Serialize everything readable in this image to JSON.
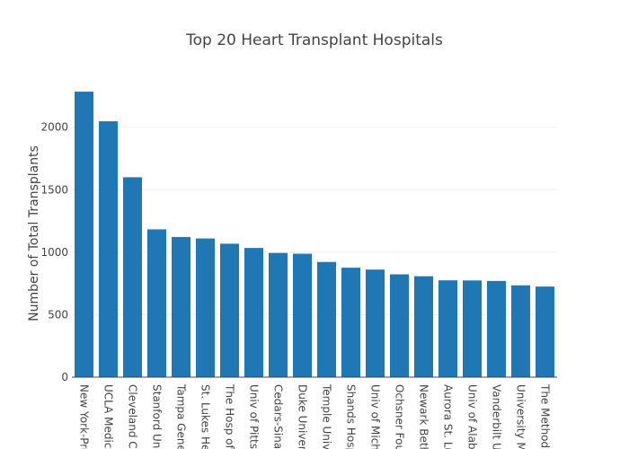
{
  "chart_data": {
    "type": "bar",
    "title": "Top 20 Heart Transplant Hospitals",
    "xlabel": "",
    "ylabel": "Number of Total Transplants",
    "ylim": [
      0,
      2300
    ],
    "yticks": [
      0,
      500,
      1000,
      1500,
      2000
    ],
    "grid": true,
    "bar_color": "#1f77b4",
    "categories": [
      "New York-Pres",
      "UCLA Medica",
      "Cleveland Clin",
      "Stanford Univ",
      "Tampa Gener",
      "St. Lukes Hea",
      "The Hosp of t",
      "Univ of Pittsb",
      "Cedars-Sinai",
      "Duke Univers",
      "Temple Univ",
      "Shands Hosp",
      "Univ of Michi",
      "Ochsner Fou",
      "Newark Beth",
      "Aurora St. Lu",
      "Univ of Alaba",
      "Vanderbilt Un",
      "University Me",
      "The Methodis"
    ],
    "values": [
      2285,
      2048,
      1600,
      1183,
      1122,
      1110,
      1068,
      1034,
      994,
      988,
      922,
      876,
      861,
      823,
      808,
      775,
      774,
      770,
      735,
      725
    ]
  }
}
